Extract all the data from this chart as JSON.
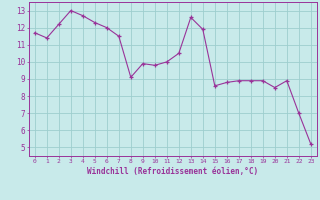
{
  "x": [
    0,
    1,
    2,
    3,
    4,
    5,
    6,
    7,
    8,
    9,
    10,
    11,
    12,
    13,
    14,
    15,
    16,
    17,
    18,
    19,
    20,
    21,
    22,
    23
  ],
  "y": [
    11.7,
    11.4,
    12.2,
    13.0,
    12.7,
    12.3,
    12.0,
    11.5,
    9.1,
    9.9,
    9.8,
    10.0,
    10.5,
    12.6,
    11.9,
    8.6,
    8.8,
    8.9,
    8.9,
    8.9,
    8.5,
    8.9,
    7.0,
    5.2
  ],
  "line_color": "#993399",
  "marker": "+",
  "marker_size": 3,
  "bg_color": "#c8eaea",
  "grid_color": "#9ecece",
  "xlabel": "Windchill (Refroidissement éolien,°C)",
  "ylabel_ticks": [
    5,
    6,
    7,
    8,
    9,
    10,
    11,
    12,
    13
  ],
  "xlim": [
    -0.5,
    23.5
  ],
  "ylim": [
    4.5,
    13.5
  ],
  "tick_color": "#993399",
  "label_color": "#993399"
}
